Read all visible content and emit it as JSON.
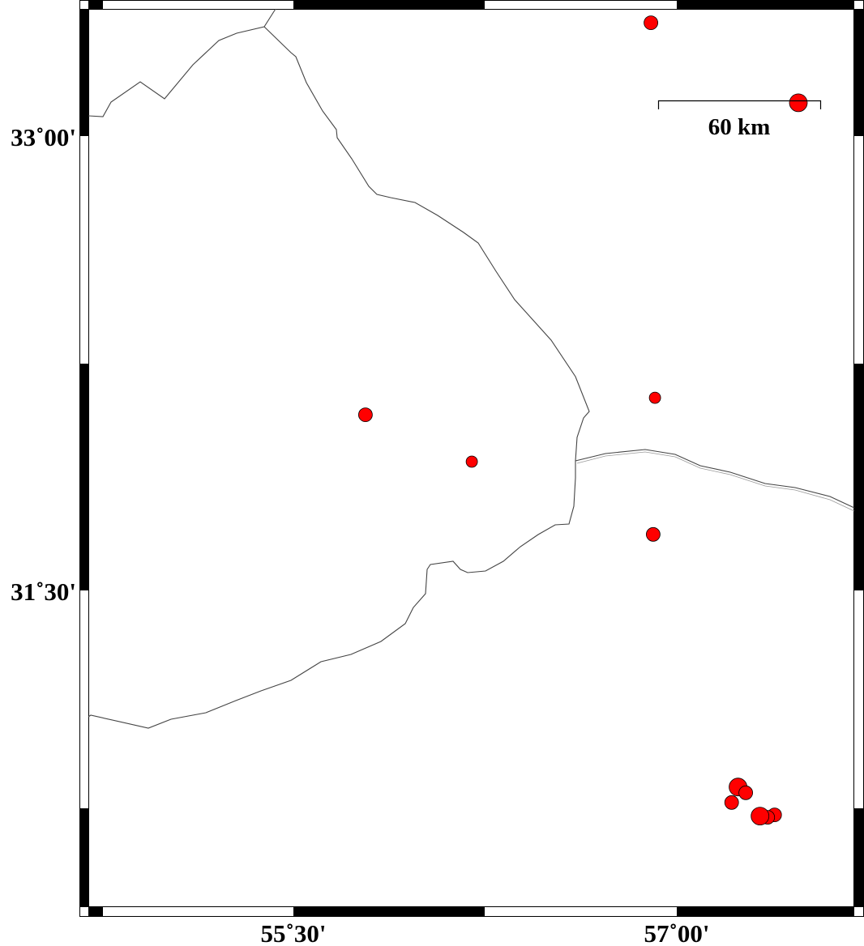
{
  "map": {
    "region": {
      "lon_min": 54.698,
      "lon_max": 57.696,
      "lat_min": 30.955,
      "lat_max": 33.419
    },
    "frame_style": "alternating black/white fancy frame",
    "lon_ticks": [
      {
        "value": 55.5,
        "label": "55˚30'"
      },
      {
        "value": 57.0,
        "label": "57˚00'"
      }
    ],
    "lat_ticks": [
      {
        "value": 33.0,
        "label": "33˚00'"
      },
      {
        "value": 31.5,
        "label": "31˚30'"
      }
    ],
    "scale_bar": {
      "label": "60 km",
      "length_km": 60
    },
    "symbol_color": "#ff0000",
    "symbol_outline": "#000000",
    "events": [
      {
        "lon": 56.899,
        "lat": 33.374,
        "size": 2
      },
      {
        "lon": 57.476,
        "lat": 33.11,
        "size": 3
      },
      {
        "lon": 56.915,
        "lat": 32.136,
        "size": 1
      },
      {
        "lon": 55.782,
        "lat": 32.08,
        "size": 2
      },
      {
        "lon": 56.198,
        "lat": 31.925,
        "size": 1
      },
      {
        "lon": 56.908,
        "lat": 31.685,
        "size": 2
      },
      {
        "lon": 57.24,
        "lat": 30.851,
        "size": 3
      },
      {
        "lon": 57.27,
        "lat": 30.832,
        "size": 2
      },
      {
        "lon": 57.215,
        "lat": 30.8,
        "size": 2
      },
      {
        "lon": 57.383,
        "lat": 30.759,
        "size": 2
      },
      {
        "lon": 57.356,
        "lat": 30.751,
        "size": 2
      },
      {
        "lon": 57.326,
        "lat": 30.755,
        "size": 3
      }
    ]
  }
}
